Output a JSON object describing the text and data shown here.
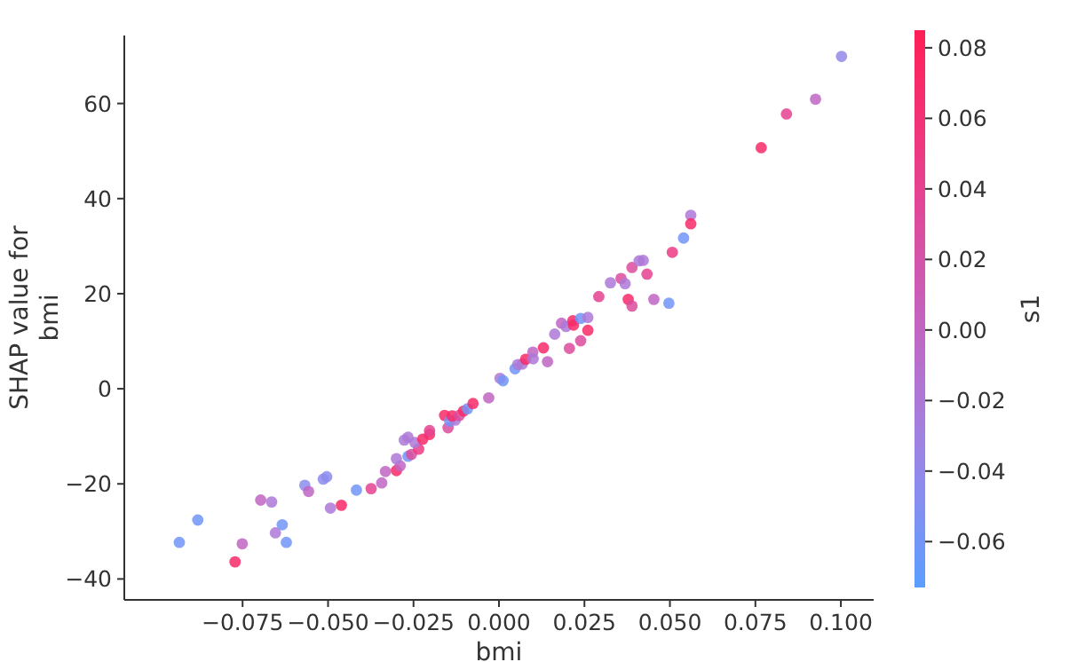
{
  "chart_data": {
    "type": "scatter",
    "xlabel": "bmi",
    "ylabel": "SHAP value for\nbmi",
    "clabel": "s1",
    "marker": "circle",
    "xlim": [
      -0.1096,
      0.1096
    ],
    "ylim": [
      -44.4,
      74.3
    ],
    "clim": [
      -0.073,
      0.085
    ],
    "xticks": [
      {
        "value": -0.075,
        "label": "−0.075"
      },
      {
        "value": -0.05,
        "label": "−0.050"
      },
      {
        "value": -0.025,
        "label": "−0.025"
      },
      {
        "value": 0,
        "label": "0.000"
      },
      {
        "value": 0.025,
        "label": "0.025"
      },
      {
        "value": 0.05,
        "label": "0.050"
      },
      {
        "value": 0.075,
        "label": "0.075"
      },
      {
        "value": 0.1,
        "label": "0.100"
      }
    ],
    "yticks": [
      {
        "value": -40,
        "label": "−40"
      },
      {
        "value": -20,
        "label": "−20"
      },
      0,
      20,
      40,
      60
    ],
    "cticks": [
      {
        "value": -0.06,
        "label": "−0.06"
      },
      {
        "value": -0.04,
        "label": "−0.04"
      },
      {
        "value": -0.02,
        "label": "−0.02"
      },
      {
        "value": 0,
        "label": "0.00"
      },
      {
        "value": 0.02,
        "label": "0.02"
      },
      {
        "value": 0.04,
        "label": "0.04"
      },
      {
        "value": 0.06,
        "label": "0.06"
      },
      {
        "value": 0.08,
        "label": "0.08"
      }
    ],
    "x": [
      -0.0935,
      -0.0881,
      -0.0772,
      -0.0751,
      -0.0697,
      -0.0665,
      -0.0654,
      -0.0634,
      -0.0622,
      -0.0568,
      -0.0557,
      -0.0514,
      -0.0504,
      -0.0493,
      -0.0461,
      -0.0417,
      -0.0374,
      -0.0343,
      -0.0332,
      -0.03,
      -0.0289,
      -0.03,
      -0.0266,
      -0.0256,
      -0.0235,
      -0.0277,
      -0.0266,
      -0.0246,
      -0.0223,
      -0.0203,
      -0.0203,
      -0.0159,
      -0.0149,
      -0.0144,
      -0.0128,
      -0.0137,
      -0.0116,
      -0.0104,
      -0.0092,
      -0.0076,
      -0.003,
      0.0003,
      0.0012,
      0.0047,
      0.0055,
      0.0068,
      0.0078,
      0.0099,
      0.01,
      0.013,
      0.0142,
      0.0163,
      0.0183,
      0.0196,
      0.0206,
      0.0216,
      0.0218,
      0.0239,
      0.0239,
      0.026,
      0.026,
      0.0292,
      0.0326,
      0.0357,
      0.0369,
      0.0378,
      0.0389,
      0.0389,
      0.041,
      0.0422,
      0.0433,
      0.0453,
      0.0497,
      0.0507,
      0.054,
      0.0561,
      0.0561,
      0.0767,
      0.0841,
      0.0926,
      0.1002
    ],
    "values": [
      -32.3,
      -27.6,
      -36.4,
      -32.6,
      -23.4,
      -23.8,
      -30.3,
      -28.6,
      -32.3,
      -20.3,
      -21.6,
      -19.0,
      -18.5,
      -25.1,
      -24.5,
      -21.3,
      -21.0,
      -19.8,
      -17.4,
      -17.2,
      -16.2,
      -14.7,
      -14.2,
      -13.8,
      -12.7,
      -10.8,
      -10.2,
      -11.3,
      -10.6,
      -9.6,
      -8.8,
      -5.6,
      -8.2,
      -6.8,
      -6.6,
      -5.7,
      -5.6,
      -4.7,
      -4.2,
      -3.1,
      -1.9,
      2.2,
      1.7,
      4.2,
      5.1,
      5.2,
      6.2,
      7.7,
      6.3,
      8.6,
      5.7,
      11.5,
      13.8,
      13.1,
      8.5,
      14.3,
      13.4,
      14.8,
      10.1,
      15.0,
      12.3,
      19.4,
      22.3,
      23.2,
      22.1,
      18.8,
      17.4,
      25.5,
      26.9,
      27.0,
      24.1,
      18.8,
      18.0,
      28.7,
      31.7,
      36.5,
      34.7,
      50.7,
      57.8,
      60.9,
      69.9
    ],
    "cvalues": [
      -0.06,
      -0.06,
      0.07,
      0.0,
      0.0,
      -0.02,
      -0.02,
      -0.06,
      -0.06,
      -0.045,
      0.0,
      -0.045,
      -0.045,
      -0.02,
      0.07,
      -0.06,
      0.04,
      0.0,
      0.0,
      0.07,
      0.0,
      -0.02,
      -0.06,
      0.03,
      0.05,
      -0.02,
      -0.02,
      -0.02,
      0.07,
      0.07,
      0.04,
      0.07,
      0.03,
      -0.06,
      -0.02,
      0.07,
      0.03,
      0.07,
      -0.06,
      0.07,
      0.0,
      -0.02,
      -0.06,
      -0.06,
      -0.02,
      -0.02,
      0.07,
      0.0,
      -0.02,
      0.07,
      0.0,
      -0.02,
      0.0,
      -0.02,
      0.03,
      0.07,
      0.07,
      -0.06,
      0.03,
      -0.02,
      0.07,
      0.04,
      -0.02,
      0.03,
      -0.02,
      0.07,
      0.03,
      0.03,
      -0.02,
      -0.02,
      0.04,
      0.0,
      -0.06,
      0.05,
      -0.06,
      -0.02,
      0.07,
      0.07,
      0.04,
      0.0,
      -0.04
    ]
  }
}
